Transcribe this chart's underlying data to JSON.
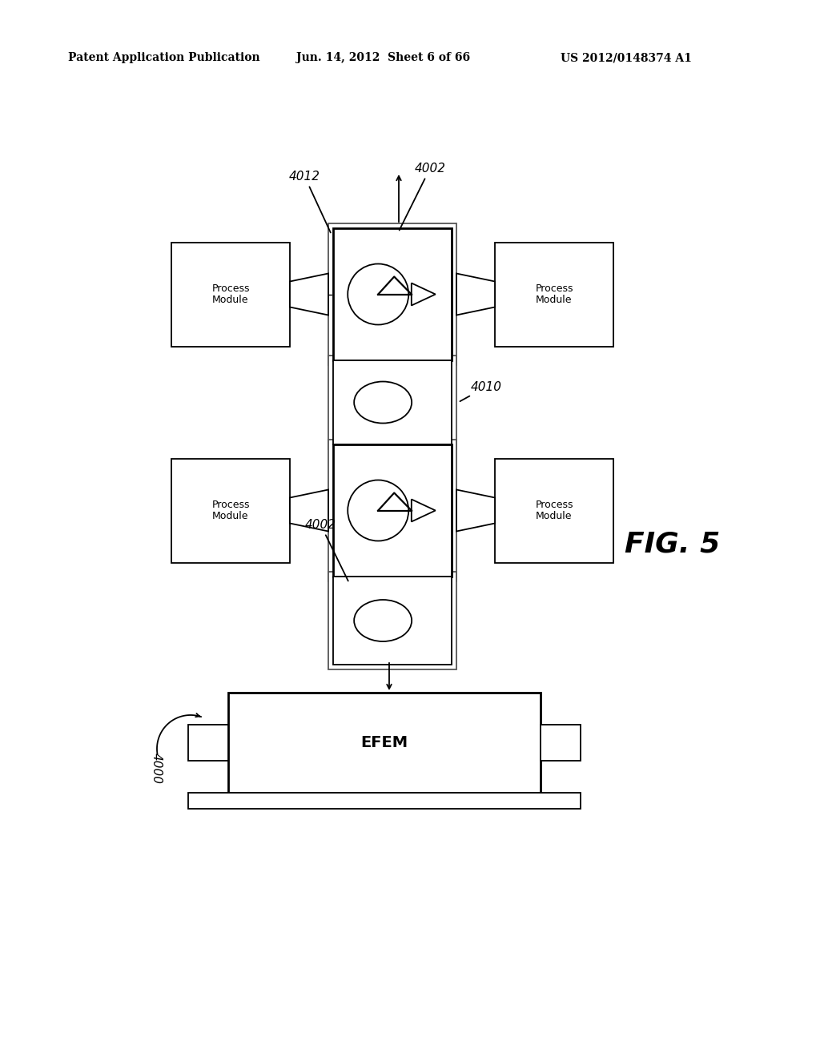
{
  "bg_color": "#ffffff",
  "header_left": "Patent Application Publication",
  "header_center": "Jun. 14, 2012  Sheet 6 of 66",
  "header_right": "US 2012/0148374 A1",
  "fig_label": "FIG. 5",
  "label_4000": "4000",
  "label_4002_top": "4002",
  "label_4002_bot": "4002",
  "label_4010": "4010",
  "label_4012": "4012",
  "label_efem": "EFEM",
  "lw": 1.3,
  "lw_thick": 2.0
}
